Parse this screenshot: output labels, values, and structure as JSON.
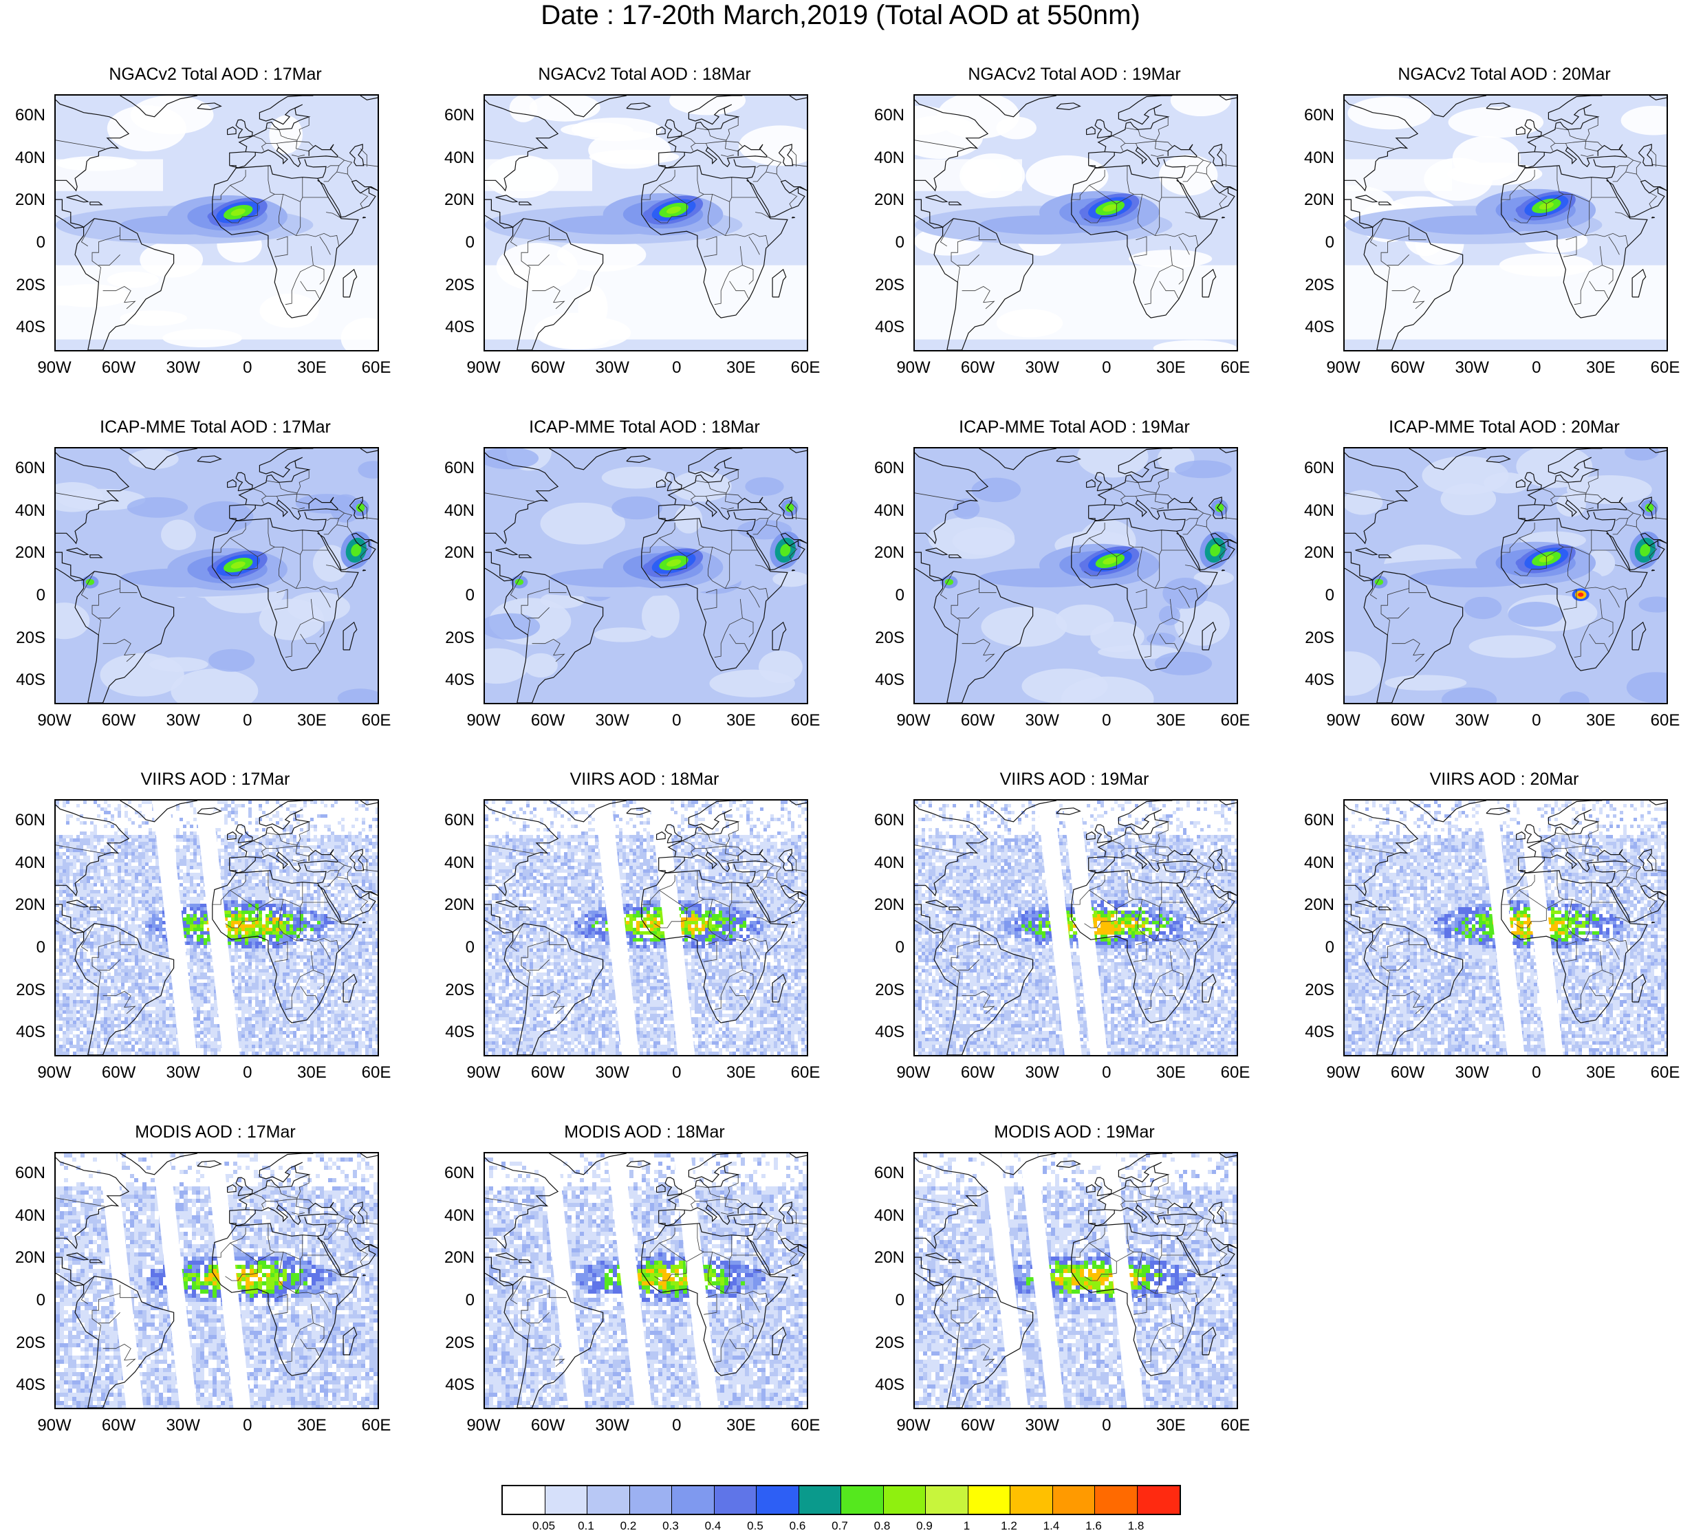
{
  "title": "Date : 17-20th March,2019 (Total AOD at 550nm)",
  "lat_labels": [
    "60N",
    "40N",
    "20N",
    "0",
    "20S",
    "40S"
  ],
  "lon_labels": [
    "90W",
    "60W",
    "30W",
    "0",
    "30E",
    "60E"
  ],
  "lat_values": [
    60,
    40,
    20,
    0,
    -20,
    -40
  ],
  "lon_values": [
    -90,
    -60,
    -30,
    0,
    30,
    60
  ],
  "map_extent": {
    "lon": [
      -90,
      60
    ],
    "lat": [
      -50,
      70
    ]
  },
  "panels": [
    {
      "title": "NGACv2 Total AOD : 17Mar",
      "product": "NGACv2",
      "day": "17Mar"
    },
    {
      "title": "NGACv2 Total AOD : 18Mar",
      "product": "NGACv2",
      "day": "18Mar"
    },
    {
      "title": "NGACv2 Total AOD : 19Mar",
      "product": "NGACv2",
      "day": "19Mar"
    },
    {
      "title": "NGACv2 Total AOD : 20Mar",
      "product": "NGACv2",
      "day": "20Mar"
    },
    {
      "title": "ICAP-MME Total AOD : 17Mar",
      "product": "ICAP-MME",
      "day": "17Mar"
    },
    {
      "title": "ICAP-MME Total AOD : 18Mar",
      "product": "ICAP-MME",
      "day": "18Mar"
    },
    {
      "title": "ICAP-MME Total AOD : 19Mar",
      "product": "ICAP-MME",
      "day": "19Mar"
    },
    {
      "title": "ICAP-MME Total AOD : 20Mar",
      "product": "ICAP-MME",
      "day": "20Mar"
    },
    {
      "title": "VIIRS AOD : 17Mar",
      "product": "VIIRS",
      "day": "17Mar"
    },
    {
      "title": "VIIRS AOD : 18Mar",
      "product": "VIIRS",
      "day": "18Mar"
    },
    {
      "title": "VIIRS AOD : 19Mar",
      "product": "VIIRS",
      "day": "19Mar"
    },
    {
      "title": "VIIRS AOD : 20Mar",
      "product": "VIIRS",
      "day": "20Mar"
    },
    {
      "title": "MODIS AOD : 17Mar",
      "product": "MODIS",
      "day": "17Mar"
    },
    {
      "title": "MODIS AOD : 18Mar",
      "product": "MODIS",
      "day": "18Mar"
    },
    {
      "title": "MODIS AOD : 19Mar",
      "product": "MODIS",
      "day": "19Mar"
    }
  ],
  "colorbar": {
    "labels": [
      "0.05",
      "0.1",
      "0.2",
      "0.3",
      "0.4",
      "0.5",
      "0.6",
      "0.7",
      "0.8",
      "0.9",
      "1",
      "1.2",
      "1.4",
      "1.6",
      "1.8"
    ],
    "colors": [
      "#ffffff",
      "#d6e0fa",
      "#b8c8f5",
      "#9cb1f2",
      "#7f99ef",
      "#5f75e8",
      "#2d5ff5",
      "#0a9a8c",
      "#55e81e",
      "#8ff00f",
      "#c8f53c",
      "#ffff00",
      "#ffc000",
      "#ff9a00",
      "#ff6a00",
      "#ff2a10"
    ]
  }
}
